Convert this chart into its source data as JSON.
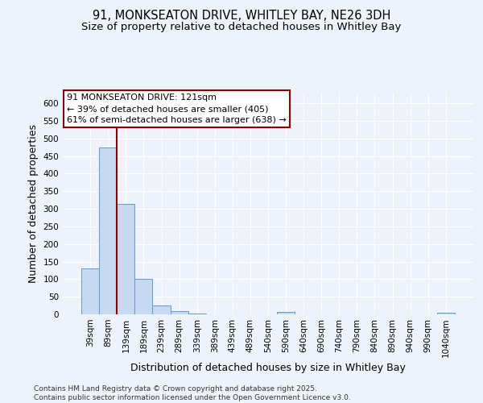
{
  "title_line1": "91, MONKSEATON DRIVE, WHITLEY BAY, NE26 3DH",
  "title_line2": "Size of property relative to detached houses in Whitley Bay",
  "xlabel": "Distribution of detached houses by size in Whitley Bay",
  "ylabel": "Number of detached properties",
  "categories": [
    "39sqm",
    "89sqm",
    "139sqm",
    "189sqm",
    "239sqm",
    "289sqm",
    "339sqm",
    "389sqm",
    "439sqm",
    "489sqm",
    "540sqm",
    "590sqm",
    "640sqm",
    "690sqm",
    "740sqm",
    "790sqm",
    "840sqm",
    "890sqm",
    "940sqm",
    "990sqm",
    "1040sqm"
  ],
  "values": [
    130,
    475,
    315,
    100,
    25,
    10,
    3,
    1,
    0,
    1,
    0,
    6,
    0,
    0,
    0,
    0,
    0,
    0,
    0,
    0,
    5
  ],
  "bar_color": "#c6d9f0",
  "bar_edge_color": "#5b9bd5",
  "vline_color": "#8B0000",
  "annotation_text": "91 MONKSEATON DRIVE: 121sqm\n← 39% of detached houses are smaller (405)\n61% of semi-detached houses are larger (638) →",
  "annotation_box_color": "white",
  "annotation_box_edge": "#8B0000",
  "ylim": [
    0,
    630
  ],
  "yticks": [
    0,
    50,
    100,
    150,
    200,
    250,
    300,
    350,
    400,
    450,
    500,
    550,
    600
  ],
  "footnote": "Contains HM Land Registry data © Crown copyright and database right 2025.\nContains public sector information licensed under the Open Government Licence v3.0.",
  "background_color": "#eef2fa",
  "title_fontsize": 10.5,
  "subtitle_fontsize": 9.5,
  "label_fontsize": 9,
  "tick_fontsize": 7.5,
  "footnote_fontsize": 6.5
}
